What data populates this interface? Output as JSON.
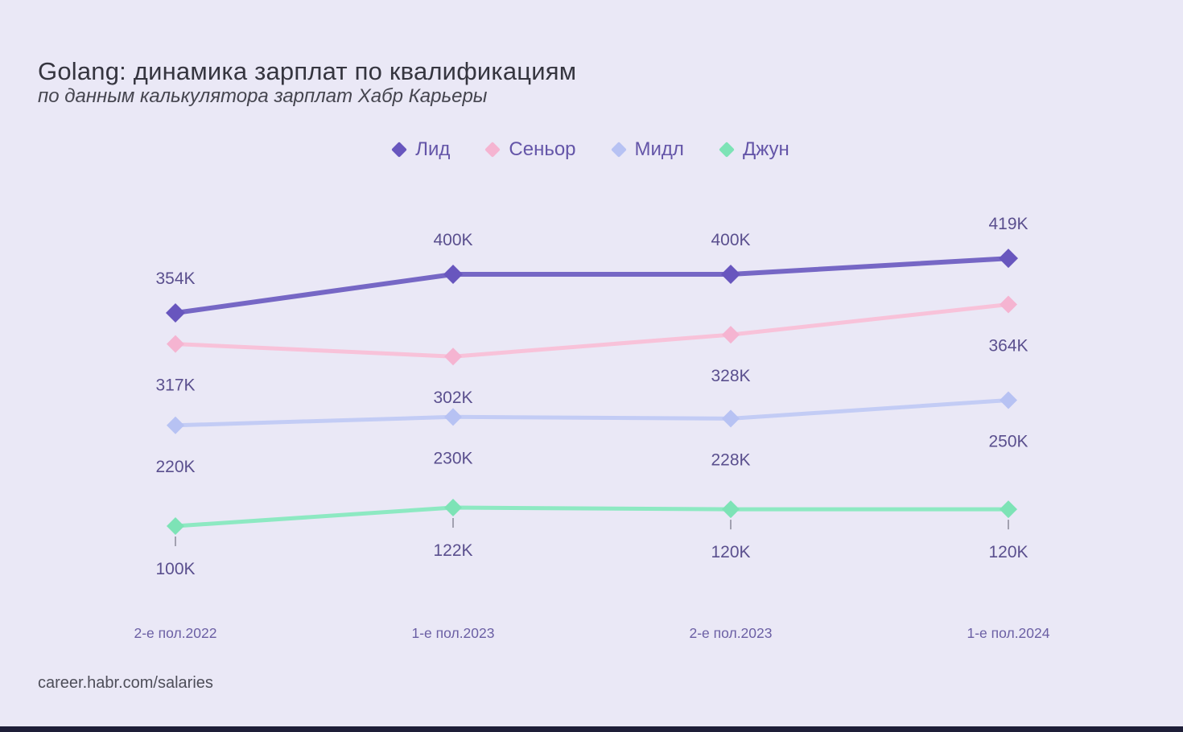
{
  "footer": {
    "text": "career.habr.com/salaries"
  },
  "colors": {
    "background": "#EAE8F6",
    "title": "#35353F",
    "subtitle": "#45454F",
    "data_label": "#5A4F8E",
    "axis_label": "#6B5FA4",
    "legend_label": "#6455A8",
    "footer": "#4E4E59",
    "bottom_bar": "#1E1E38",
    "leader_line": "#3C3C4E"
  },
  "chart_data": {
    "type": "line",
    "title": "Golang: динамика зарплат по квалификациям",
    "subtitle": "по данным калькулятора зарплат Хабр Карьеры",
    "x_categories": [
      "2-е пол.2022",
      "1-е пол.2023",
      "2-е пол.2023",
      "1-е пол.2024"
    ],
    "y_unit": "K",
    "y_range_implied": [
      100,
      419
    ],
    "grid": false,
    "legend_position": "top-center",
    "series": [
      {
        "name": "Лид",
        "values": [
          354,
          400,
          400,
          419
        ],
        "labels": [
          "354K",
          "400K",
          "400K",
          "419K"
        ],
        "color": "#7667C5",
        "marker_color": "#6856BE",
        "label_position": "above",
        "line_width": 6,
        "leader_lines": false
      },
      {
        "name": "Сеньор",
        "values": [
          317,
          302,
          328,
          364
        ],
        "labels": [
          "317K",
          "302K",
          "328K",
          "364K"
        ],
        "color": "#F8C2D9",
        "marker_color": "#F5B4D1",
        "label_position": "below",
        "line_width": 5,
        "leader_lines": false
      },
      {
        "name": "Мидл",
        "values": [
          220,
          230,
          228,
          250
        ],
        "labels": [
          "220K",
          "230K",
          "228K",
          "250K"
        ],
        "color": "#C3CCF5",
        "marker_color": "#B7C2F3",
        "label_position": "below",
        "line_width": 5,
        "leader_lines": false
      },
      {
        "name": "Джун",
        "values": [
          100,
          122,
          120,
          120
        ],
        "labels": [
          "100K",
          "122K",
          "120K",
          "120K"
        ],
        "color": "#8DE9C2",
        "marker_color": "#7DE3B6",
        "label_position": "below",
        "line_width": 5,
        "leader_lines": true
      }
    ]
  }
}
